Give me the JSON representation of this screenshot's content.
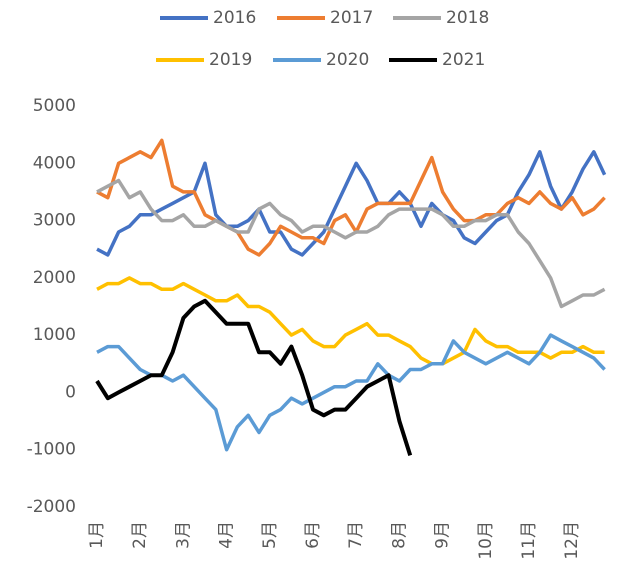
{
  "chart_data": {
    "type": "line",
    "categories": [
      "1月",
      null,
      null,
      null,
      "2月",
      null,
      null,
      null,
      "3月",
      null,
      null,
      null,
      "4月",
      null,
      null,
      null,
      "5月",
      null,
      null,
      null,
      "6月",
      null,
      null,
      null,
      "7月",
      null,
      null,
      null,
      "8月",
      null,
      null,
      null,
      "9月",
      null,
      null,
      null,
      "10月",
      null,
      null,
      null,
      "11月",
      null,
      null,
      null,
      "12月",
      null,
      null,
      null
    ],
    "series": [
      {
        "name": "2016",
        "color": "#4472c4",
        "values": [
          2500,
          2400,
          2800,
          2900,
          3100,
          3100,
          3200,
          3300,
          3400,
          3500,
          4000,
          3100,
          2900,
          2900,
          3000,
          3200,
          2800,
          2800,
          2500,
          2400,
          2600,
          2800,
          3200,
          3600,
          4000,
          3700,
          3300,
          3300,
          3500,
          3300,
          2900,
          3300,
          3100,
          3000,
          2700,
          2600,
          2800,
          3000,
          3100,
          3500,
          3800,
          4200,
          3600,
          3200,
          3500,
          3900,
          4200,
          3800
        ]
      },
      {
        "name": "2017",
        "color": "#ed7d31",
        "values": [
          3500,
          3400,
          4000,
          4100,
          4200,
          4100,
          4400,
          3600,
          3500,
          3500,
          3100,
          3000,
          2900,
          2800,
          2500,
          2400,
          2600,
          2900,
          2800,
          2700,
          2700,
          2600,
          3000,
          3100,
          2800,
          3200,
          3300,
          3300,
          3300,
          3300,
          3700,
          4100,
          3500,
          3200,
          3000,
          3000,
          3100,
          3100,
          3300,
          3400,
          3300,
          3500,
          3300,
          3200,
          3400,
          3100,
          3200,
          3400
        ]
      },
      {
        "name": "2018",
        "color": "#a5a5a5",
        "values": [
          3500,
          3600,
          3700,
          3400,
          3500,
          3200,
          3000,
          3000,
          3100,
          2900,
          2900,
          3000,
          2900,
          2800,
          2800,
          3200,
          3300,
          3100,
          3000,
          2800,
          2900,
          2900,
          2800,
          2700,
          2800,
          2800,
          2900,
          3100,
          3200,
          3200,
          3200,
          3200,
          3100,
          2900,
          2900,
          3000,
          3000,
          3100,
          3100,
          2800,
          2600,
          2300,
          2000,
          1500,
          1600,
          1700,
          1700,
          1800
        ]
      },
      {
        "name": "2019",
        "color": "#ffc000",
        "values": [
          1800,
          1900,
          1900,
          2000,
          1900,
          1900,
          1800,
          1800,
          1900,
          1800,
          1700,
          1600,
          1600,
          1700,
          1500,
          1500,
          1400,
          1200,
          1000,
          1100,
          900,
          800,
          800,
          1000,
          1100,
          1200,
          1000,
          1000,
          900,
          800,
          600,
          500,
          500,
          600,
          700,
          1100,
          900,
          800,
          800,
          700,
          700,
          700,
          600,
          700,
          700,
          800,
          700,
          700
        ]
      },
      {
        "name": "2020",
        "color": "#5b9bd5",
        "values": [
          700,
          800,
          800,
          600,
          400,
          300,
          300,
          200,
          300,
          100,
          -100,
          -300,
          -1000,
          -600,
          -400,
          -700,
          -400,
          -300,
          -100,
          -200,
          -100,
          0,
          100,
          100,
          200,
          200,
          500,
          300,
          200,
          400,
          400,
          500,
          500,
          900,
          700,
          600,
          500,
          600,
          700,
          600,
          500,
          700,
          1000,
          900,
          800,
          700,
          600,
          400
        ]
      },
      {
        "name": "2021",
        "color": "#000000",
        "values": [
          200,
          -100,
          0,
          100,
          200,
          300,
          300,
          700,
          1300,
          1500,
          1600,
          1400,
          1200,
          1200,
          1200,
          700,
          700,
          500,
          800,
          300,
          -300,
          -400,
          -300,
          -300,
          -100,
          100,
          200,
          300,
          -500,
          -1100,
          null,
          null,
          null,
          null,
          null,
          null,
          null,
          null,
          null,
          null,
          null,
          null,
          null,
          null,
          null,
          null,
          null,
          null
        ]
      }
    ],
    "ylim": [
      -2000,
      5000
    ],
    "yticks": [
      -2000,
      -1000,
      0,
      1000,
      2000,
      3000,
      4000,
      5000
    ],
    "grid": false,
    "legend": "top"
  }
}
